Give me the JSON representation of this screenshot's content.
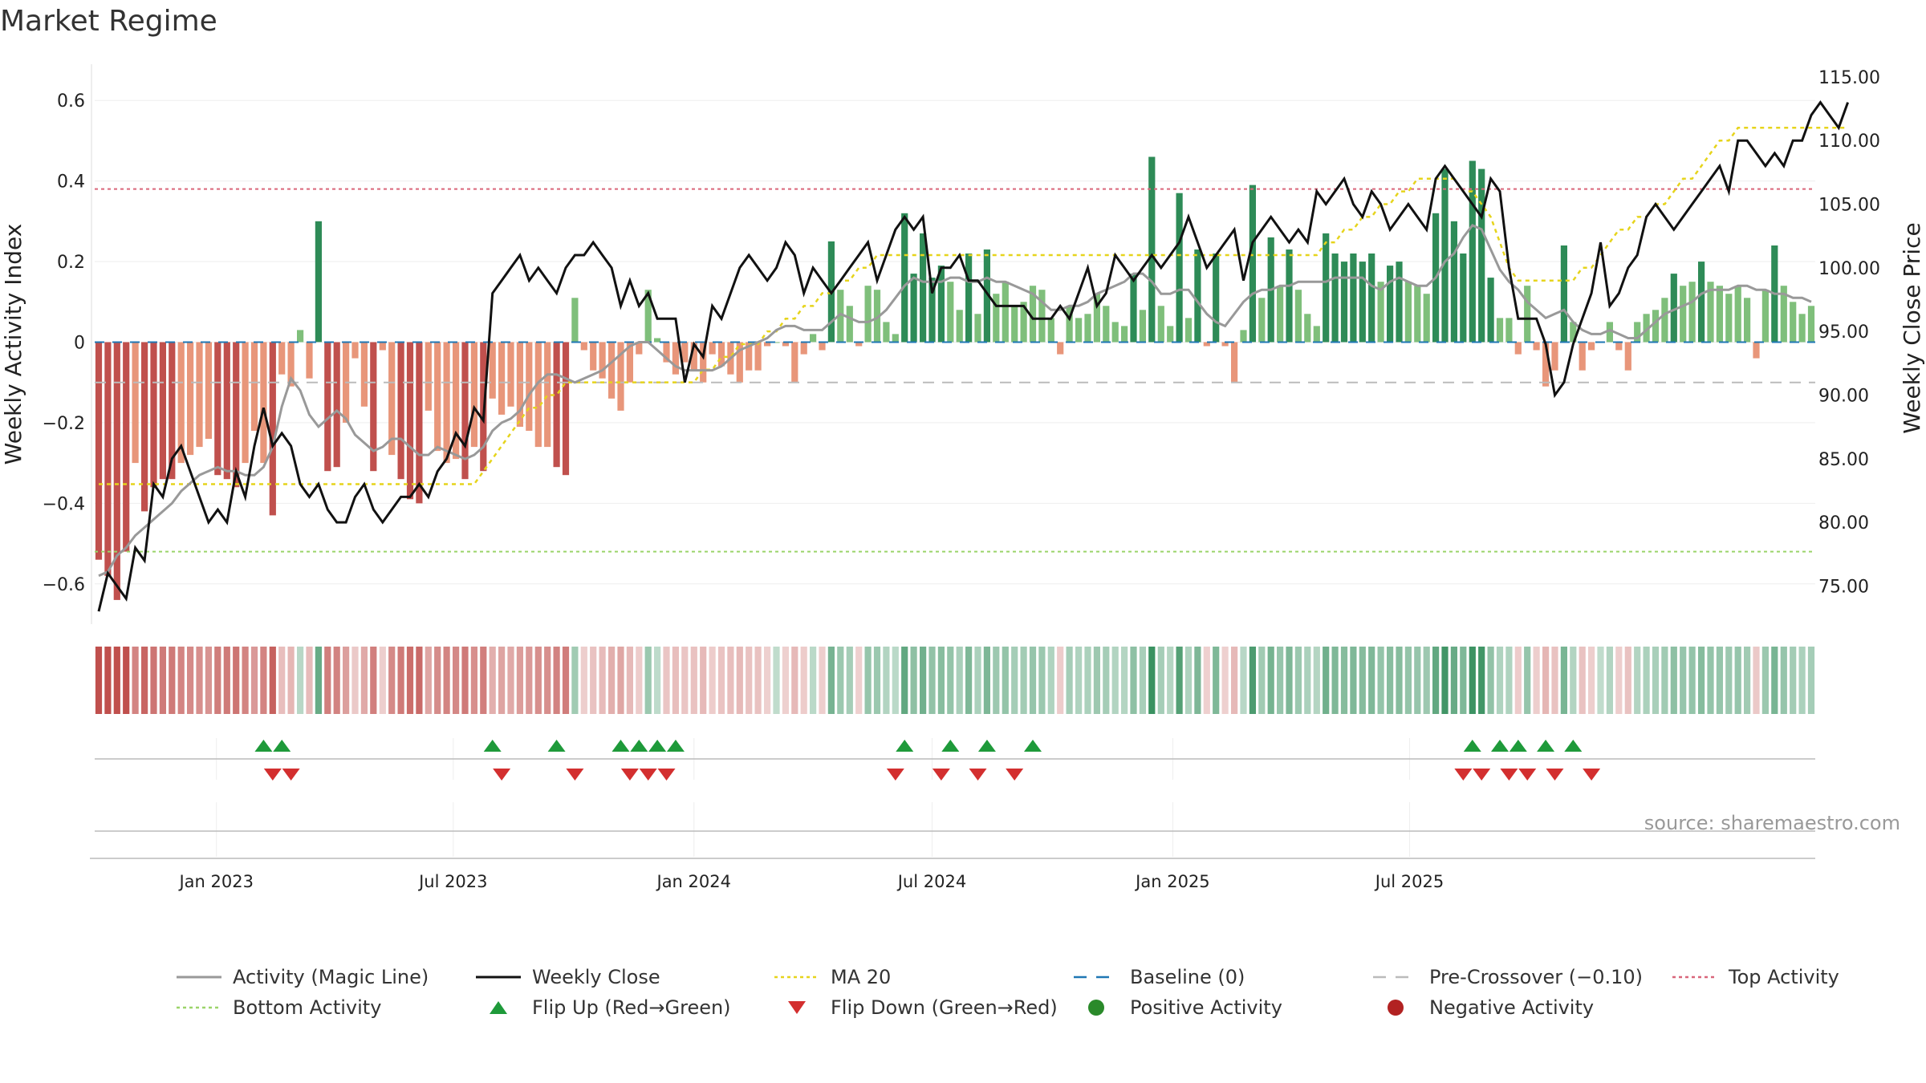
{
  "title": "Market Regime",
  "source": "source: sharemaestro.com",
  "colors": {
    "pos_strong": "#2e8b57",
    "pos_light": "#7fbf7b",
    "neg_strong": "#c0504d",
    "neg_light": "#e8967a",
    "close": "#111111",
    "magic": "#999999",
    "ma20": "#e6d41c",
    "baseline": "#1f77b4",
    "precross": "#bbbbbb",
    "top": "#d9667a",
    "bottom": "#9bd46a",
    "flip_up": "#1e9a3a",
    "flip_down": "#d32f2f",
    "pos_dot": "#2a8a2a",
    "neg_dot": "#b22222"
  },
  "chart_data": {
    "type": "bar",
    "x_start": "2022-10-03",
    "x_step_days": 7,
    "left_axis": {
      "label": "Weekly Activity Index",
      "ticks": [
        -0.6,
        -0.4,
        -0.2,
        0,
        0.2,
        0.4,
        0.6
      ],
      "tick_labels": [
        "−0.6",
        "−0.4",
        "−0.2",
        "0",
        "0.2",
        "0.4",
        "0.6"
      ],
      "ylim": [
        -0.7,
        0.69
      ]
    },
    "right_axis": {
      "label": "Weekly Close Price",
      "ticks": [
        75,
        80,
        85,
        90,
        95,
        100,
        105,
        110,
        115
      ],
      "tick_labels": [
        "75.00",
        "80.00",
        "85.00",
        "90.00",
        "95.00",
        "100.00",
        "105.00",
        "110.00",
        "115.00"
      ],
      "ylim": [
        72,
        116
      ]
    },
    "date_ticks": [
      {
        "label": "Jan 2023",
        "date": "2023-01-01"
      },
      {
        "label": "Jul 2023",
        "date": "2023-07-01"
      },
      {
        "label": "Jan 2024",
        "date": "2024-01-01"
      },
      {
        "label": "Jul 2024",
        "date": "2024-07-01"
      },
      {
        "label": "Jan 2025",
        "date": "2025-01-01"
      },
      {
        "label": "Jul 2025",
        "date": "2025-07-01"
      }
    ],
    "reference_lines": {
      "top_activity": 0.38,
      "bottom_activity": -0.52,
      "pre_crossover": -0.1,
      "baseline": 0
    },
    "activity": [
      -0.54,
      -0.58,
      -0.64,
      -0.52,
      -0.3,
      -0.42,
      -0.36,
      -0.34,
      -0.34,
      -0.3,
      -0.28,
      -0.26,
      -0.24,
      -0.33,
      -0.34,
      -0.36,
      -0.3,
      -0.22,
      -0.3,
      -0.43,
      -0.08,
      -0.11,
      0.03,
      -0.09,
      0.3,
      -0.32,
      -0.31,
      -0.2,
      -0.04,
      -0.16,
      -0.32,
      -0.02,
      -0.28,
      -0.34,
      -0.39,
      -0.4,
      -0.17,
      -0.27,
      -0.3,
      -0.29,
      -0.34,
      -0.26,
      -0.32,
      -0.14,
      -0.18,
      -0.16,
      -0.21,
      -0.22,
      -0.26,
      -0.26,
      -0.31,
      -0.33,
      0.11,
      -0.02,
      -0.07,
      -0.09,
      -0.14,
      -0.17,
      -0.1,
      -0.03,
      0.13,
      0.01,
      -0.05,
      -0.08,
      -0.05,
      -0.07,
      -0.1,
      -0.03,
      -0.06,
      -0.08,
      -0.1,
      -0.07,
      -0.07,
      -0.01,
      0.0,
      -0.01,
      -0.1,
      -0.03,
      0.02,
      -0.02,
      0.25,
      0.13,
      0.09,
      -0.01,
      0.14,
      0.13,
      0.05,
      0.02,
      0.32,
      0.17,
      0.27,
      0.16,
      0.19,
      0.15,
      0.08,
      0.22,
      0.07,
      0.23,
      0.12,
      0.15,
      0.09,
      0.1,
      0.14,
      0.13,
      0.06,
      -0.03,
      0.09,
      0.06,
      0.07,
      0.12,
      0.09,
      0.05,
      0.04,
      0.17,
      0.08,
      0.46,
      0.09,
      0.04,
      0.37,
      0.06,
      0.23,
      -0.01,
      0.22,
      -0.01,
      -0.1,
      0.03,
      0.39,
      0.11,
      0.26,
      0.14,
      0.23,
      0.13,
      0.07,
      0.04,
      0.27,
      0.22,
      0.2,
      0.22,
      0.2,
      0.22,
      0.15,
      0.19,
      0.2,
      0.15,
      0.14,
      0.12,
      0.32,
      0.43,
      0.3,
      0.22,
      0.45,
      0.43,
      0.16,
      0.06,
      0.06,
      -0.03,
      0.14,
      -0.02,
      -0.11,
      -0.07,
      0.24,
      0.05,
      -0.07,
      -0.02,
      0.0,
      0.05,
      -0.02,
      -0.07,
      0.05,
      0.07,
      0.08,
      0.11,
      0.17,
      0.14,
      0.15,
      0.2,
      0.15,
      0.14,
      0.12,
      0.14,
      0.11,
      -0.04,
      0.13,
      0.24,
      0.14,
      0.1,
      0.07,
      0.09
    ],
    "magic": [
      -0.58,
      -0.57,
      -0.53,
      -0.51,
      -0.48,
      -0.46,
      -0.44,
      -0.42,
      -0.4,
      -0.37,
      -0.35,
      -0.33,
      -0.32,
      -0.31,
      -0.32,
      -0.32,
      -0.33,
      -0.33,
      -0.31,
      -0.26,
      -0.16,
      -0.09,
      -0.12,
      -0.18,
      -0.21,
      -0.19,
      -0.17,
      -0.19,
      -0.23,
      -0.25,
      -0.27,
      -0.26,
      -0.24,
      -0.24,
      -0.26,
      -0.28,
      -0.28,
      -0.26,
      -0.27,
      -0.28,
      -0.29,
      -0.28,
      -0.26,
      -0.22,
      -0.2,
      -0.19,
      -0.17,
      -0.13,
      -0.1,
      -0.08,
      -0.08,
      -0.09,
      -0.1,
      -0.09,
      -0.08,
      -0.07,
      -0.05,
      -0.03,
      -0.01,
      0.0,
      0.0,
      -0.02,
      -0.04,
      -0.06,
      -0.07,
      -0.07,
      -0.07,
      -0.07,
      -0.06,
      -0.04,
      -0.02,
      -0.01,
      0.0,
      0.01,
      0.03,
      0.04,
      0.04,
      0.03,
      0.03,
      0.03,
      0.05,
      0.07,
      0.06,
      0.05,
      0.05,
      0.06,
      0.08,
      0.11,
      0.14,
      0.16,
      0.15,
      0.15,
      0.15,
      0.16,
      0.16,
      0.15,
      0.15,
      0.16,
      0.15,
      0.15,
      0.14,
      0.13,
      0.12,
      0.1,
      0.08,
      0.08,
      0.09,
      0.09,
      0.1,
      0.12,
      0.13,
      0.14,
      0.15,
      0.17,
      0.17,
      0.15,
      0.12,
      0.12,
      0.13,
      0.13,
      0.1,
      0.07,
      0.05,
      0.04,
      0.07,
      0.1,
      0.12,
      0.13,
      0.13,
      0.14,
      0.14,
      0.15,
      0.15,
      0.15,
      0.15,
      0.16,
      0.16,
      0.16,
      0.16,
      0.14,
      0.13,
      0.15,
      0.16,
      0.15,
      0.14,
      0.14,
      0.16,
      0.2,
      0.22,
      0.26,
      0.29,
      0.28,
      0.23,
      0.18,
      0.15,
      0.13,
      0.1,
      0.08,
      0.06,
      0.07,
      0.08,
      0.05,
      0.03,
      0.02,
      0.02,
      0.03,
      0.02,
      0.01,
      0.01,
      0.03,
      0.05,
      0.07,
      0.08,
      0.09,
      0.1,
      0.12,
      0.13,
      0.13,
      0.13,
      0.14,
      0.14,
      0.13,
      0.13,
      0.12,
      0.12,
      0.11,
      0.11,
      0.1
    ],
    "close": [
      73,
      76,
      75,
      74,
      78,
      77,
      83,
      82,
      85,
      86,
      84,
      82,
      80,
      81,
      80,
      84,
      82,
      86,
      89,
      86,
      87,
      86,
      83,
      82,
      83,
      81,
      80,
      80,
      82,
      83,
      81,
      80,
      81,
      82,
      82,
      83,
      82,
      84,
      85,
      87,
      86,
      89,
      88,
      98,
      99,
      100,
      101,
      99,
      100,
      99,
      98,
      100,
      101,
      101,
      102,
      101,
      100,
      97,
      99,
      97,
      98,
      96,
      96,
      96,
      91,
      94,
      93,
      97,
      96,
      98,
      100,
      101,
      100,
      99,
      100,
      102,
      101,
      98,
      100,
      99,
      98,
      99,
      100,
      101,
      102,
      99,
      101,
      103,
      104,
      103,
      104,
      98,
      100,
      100,
      101,
      99,
      99,
      98,
      97,
      97,
      97,
      97,
      96,
      96,
      96,
      97,
      96,
      98,
      100,
      97,
      98,
      101,
      100,
      99,
      100,
      101,
      100,
      101,
      102,
      104,
      102,
      100,
      101,
      102,
      103,
      99,
      102,
      103,
      104,
      103,
      102,
      103,
      102,
      106,
      105,
      106,
      107,
      105,
      104,
      106,
      105,
      103,
      104,
      105,
      104,
      103,
      107,
      108,
      107,
      106,
      105,
      104,
      107,
      106,
      100,
      96,
      96,
      96,
      94,
      90,
      91,
      94,
      96,
      98,
      102,
      97,
      98,
      100,
      101,
      104,
      105,
      104,
      103,
      104,
      105,
      106,
      107,
      108,
      106,
      110,
      110,
      109,
      108,
      109,
      108,
      110,
      110,
      112,
      113,
      112,
      111,
      113
    ],
    "ma20": [
      83,
      83,
      83,
      83,
      83,
      83,
      83,
      83,
      83,
      83,
      83,
      83,
      83,
      83,
      83,
      83,
      83,
      83,
      83,
      83,
      83,
      83,
      83,
      83,
      83,
      83,
      83,
      83,
      83,
      83,
      83,
      83,
      83,
      83,
      83,
      83,
      83,
      83,
      83,
      83,
      83,
      83,
      84,
      85,
      86,
      87,
      88,
      89,
      89,
      90,
      90,
      91,
      91,
      91,
      91,
      91,
      91,
      91,
      91,
      91,
      91,
      91,
      91,
      91,
      91,
      91,
      92,
      92,
      93,
      93,
      94,
      94,
      94,
      95,
      95,
      96,
      96,
      97,
      97,
      98,
      98,
      99,
      99,
      100,
      100,
      101,
      101,
      101,
      101,
      101,
      101,
      101,
      101,
      101,
      101,
      101,
      101,
      101,
      101,
      101,
      101,
      101,
      101,
      101,
      101,
      101,
      101,
      101,
      101,
      101,
      101,
      101,
      101,
      101,
      101,
      101,
      101,
      101,
      101,
      101,
      101,
      101,
      101,
      101,
      101,
      101,
      101,
      101,
      101,
      101,
      101,
      101,
      101,
      101,
      102,
      102,
      103,
      103,
      104,
      104,
      105,
      105,
      106,
      106,
      107,
      107,
      107,
      107,
      107,
      106,
      106,
      105,
      104,
      102,
      100,
      99,
      99,
      99,
      99,
      99,
      99,
      99,
      100,
      100,
      101,
      102,
      103,
      103,
      104,
      104,
      105,
      105,
      106,
      107,
      107,
      108,
      109,
      110,
      110,
      111,
      111,
      111,
      111,
      111,
      111,
      111,
      111,
      111,
      111,
      111,
      111,
      111
    ],
    "flip_up_weeks": [
      18,
      20,
      43,
      50,
      57,
      59,
      61,
      63,
      88,
      93,
      97,
      102,
      150,
      153,
      155,
      158,
      161
    ],
    "flip_down_weeks": [
      19,
      21,
      44,
      52,
      58,
      60,
      62,
      87,
      92,
      96,
      100,
      149,
      151,
      154,
      156,
      159,
      163
    ],
    "series": [
      {
        "name": "Activity (Magic Line)",
        "style": "line",
        "color": "#999999"
      },
      {
        "name": "Weekly Close",
        "style": "line",
        "color": "#111111"
      },
      {
        "name": "MA 20",
        "style": "dotted",
        "color": "#e6d41c"
      },
      {
        "name": "Baseline (0)",
        "style": "dashed",
        "color": "#1f77b4"
      },
      {
        "name": "Pre-Crossover (−0.10)",
        "style": "dashed",
        "color": "#bbbbbb"
      },
      {
        "name": "Top Activity",
        "style": "dotted",
        "color": "#d9667a"
      },
      {
        "name": "Bottom Activity",
        "style": "dotted",
        "color": "#9bd46a"
      },
      {
        "name": "Flip Up (Red→Green)",
        "style": "tri-up",
        "color": "#1e9a3a"
      },
      {
        "name": "Flip Down (Green→Red)",
        "style": "tri-down",
        "color": "#d32f2f"
      },
      {
        "name": "Positive Activity",
        "style": "dot",
        "color": "#2a8a2a"
      },
      {
        "name": "Negative Activity",
        "style": "dot",
        "color": "#b22222"
      }
    ]
  }
}
